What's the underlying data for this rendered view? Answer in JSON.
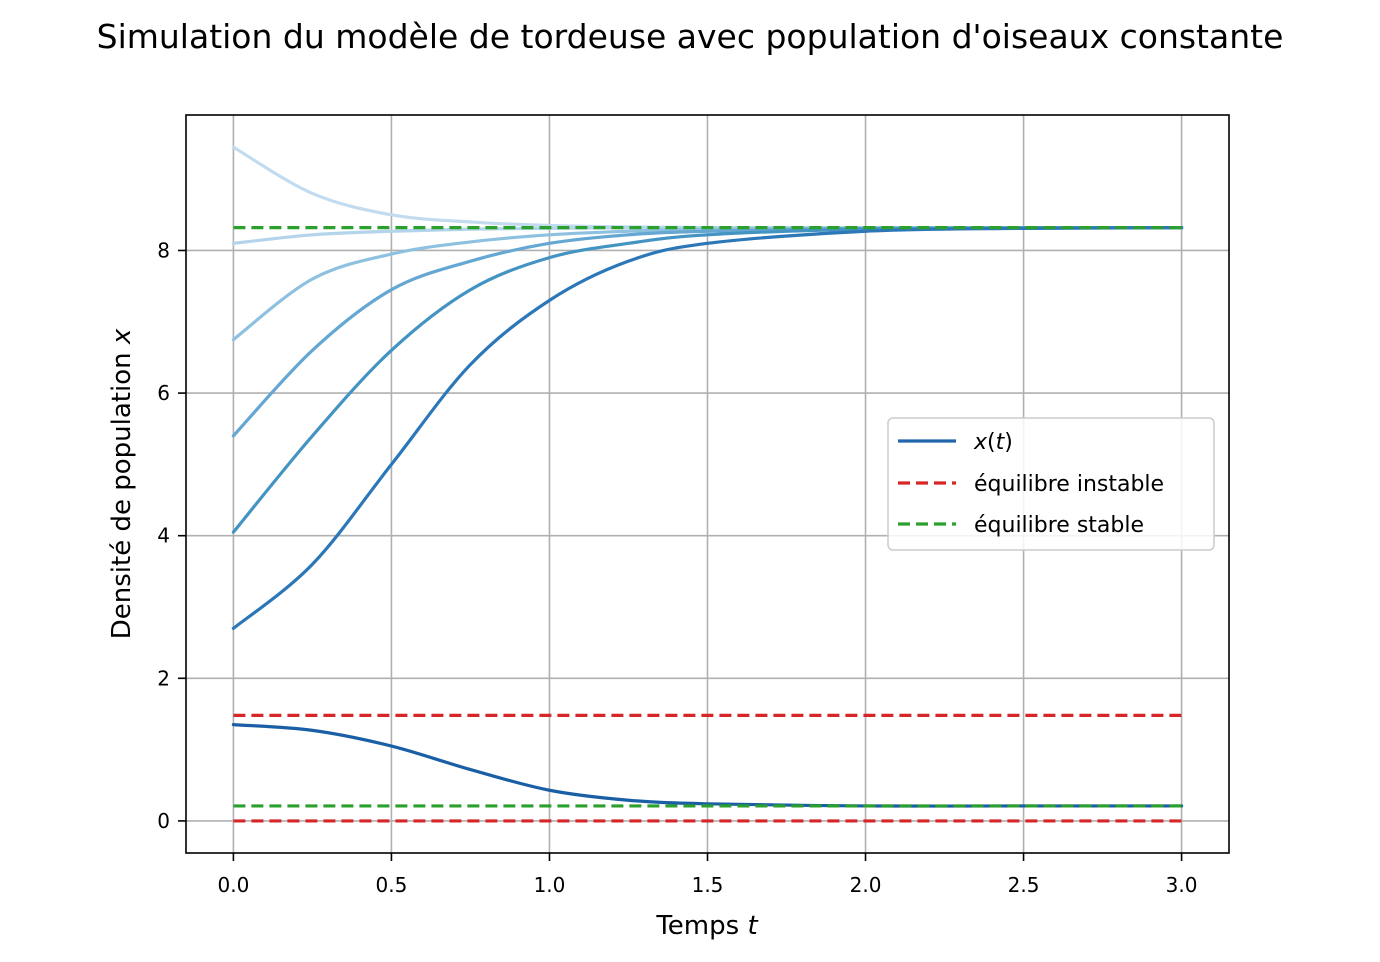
{
  "chart_data": {
    "type": "line",
    "title": "Simulation du modèle de tordeuse avec population d'oiseaux constante",
    "xlabel": "Temps ",
    "xlabel_var": "t",
    "ylabel": "Densité de population ",
    "ylabel_var": "x",
    "xlim": [
      -0.15,
      3.15
    ],
    "ylim": [
      -0.45,
      9.9
    ],
    "xticks": [
      0.0,
      0.5,
      1.0,
      1.5,
      2.0,
      2.5,
      3.0
    ],
    "xtick_labels": [
      "0.0",
      "0.5",
      "1.0",
      "1.5",
      "2.0",
      "2.5",
      "3.0"
    ],
    "yticks": [
      0,
      2,
      4,
      6,
      8
    ],
    "ytick_labels": [
      "0",
      "2",
      "4",
      "6",
      "8"
    ],
    "grid": true,
    "legend_position": "center-right",
    "legend": [
      {
        "label": "x(t)",
        "color": "#2166ac",
        "style": "solid"
      },
      {
        "label": "équilibre instable",
        "color": "#d62728",
        "style": "dashed"
      },
      {
        "label": "équilibre stable",
        "color": "#2ca02c",
        "style": "dashed"
      }
    ],
    "series": [
      {
        "color": "#1a5fa6",
        "x": [
          0,
          0.25,
          0.5,
          0.75,
          1.0,
          1.25,
          1.5,
          2.0,
          2.5,
          3.0
        ],
        "values": [
          1.35,
          1.27,
          1.05,
          0.72,
          0.43,
          0.29,
          0.24,
          0.21,
          0.21,
          0.21
        ]
      },
      {
        "color": "#2b77b8",
        "x": [
          0,
          0.25,
          0.5,
          0.75,
          1.0,
          1.25,
          1.5,
          2.0,
          2.5,
          3.0
        ],
        "values": [
          2.7,
          3.6,
          5.0,
          6.4,
          7.3,
          7.85,
          8.1,
          8.27,
          8.31,
          8.32
        ]
      },
      {
        "color": "#4393c3",
        "x": [
          0,
          0.25,
          0.5,
          0.75,
          1.0,
          1.25,
          1.5,
          2.0,
          2.5,
          3.0
        ],
        "values": [
          4.05,
          5.4,
          6.6,
          7.45,
          7.9,
          8.1,
          8.22,
          8.3,
          8.31,
          8.32
        ]
      },
      {
        "color": "#64a7d3",
        "x": [
          0,
          0.25,
          0.5,
          0.75,
          1.0,
          1.25,
          1.5,
          2.0,
          2.5,
          3.0
        ],
        "values": [
          5.4,
          6.6,
          7.45,
          7.85,
          8.1,
          8.22,
          8.27,
          8.31,
          8.32,
          8.32
        ]
      },
      {
        "color": "#8ec1e0",
        "x": [
          0,
          0.25,
          0.5,
          0.75,
          1.0,
          1.25,
          1.5,
          2.0,
          2.5,
          3.0
        ],
        "values": [
          6.75,
          7.6,
          7.95,
          8.12,
          8.22,
          8.27,
          8.3,
          8.31,
          8.32,
          8.32
        ]
      },
      {
        "color": "#b3d4ea",
        "x": [
          0,
          0.25,
          0.5,
          0.75,
          1.0,
          1.25,
          1.5,
          2.0,
          2.5,
          3.0
        ],
        "values": [
          8.1,
          8.22,
          8.27,
          8.3,
          8.31,
          8.32,
          8.32,
          8.32,
          8.32,
          8.32
        ]
      },
      {
        "color": "#c2dbee",
        "x": [
          0,
          0.25,
          0.5,
          0.75,
          1.0,
          1.25,
          1.5,
          2.0,
          2.5,
          3.0
        ],
        "values": [
          9.45,
          8.8,
          8.5,
          8.4,
          8.35,
          8.33,
          8.32,
          8.32,
          8.32,
          8.32
        ]
      }
    ],
    "equilibria": [
      {
        "kind": "instable",
        "value": 0.0,
        "color": "#d62728",
        "x": [
          0,
          3
        ]
      },
      {
        "kind": "instable",
        "value": 1.48,
        "color": "#d62728",
        "x": [
          0,
          3
        ]
      },
      {
        "kind": "stable",
        "value": 0.21,
        "color": "#2ca02c",
        "x": [
          0,
          3
        ]
      },
      {
        "kind": "stable",
        "value": 8.32,
        "color": "#2ca02c",
        "x": [
          0,
          3
        ]
      }
    ]
  }
}
